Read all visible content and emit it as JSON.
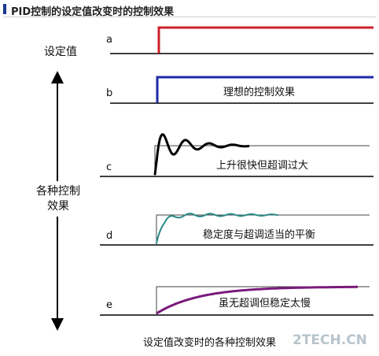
{
  "header": {
    "title_prefix": "PID",
    "title_rest": "控制的设定值改变时的控制效果"
  },
  "left": {
    "setpoint_label": "设定值",
    "effects_label_line1": "各种控制",
    "effects_label_line2": "效果"
  },
  "rows": [
    {
      "letter": "a",
      "caption": ""
    },
    {
      "letter": "b",
      "caption": "理想的控制效果"
    },
    {
      "letter": "c",
      "caption": "上升很快但超调过大"
    },
    {
      "letter": "d",
      "caption": "稳定度与超调适当的平衡"
    },
    {
      "letter": "e",
      "caption": "虽无超调但稳定太慢"
    }
  ],
  "footer": {
    "caption": "设定值改变时的各种控制效果"
  },
  "watermark": {
    "text": "2TECH.CN"
  },
  "colors": {
    "setpoint_step": "#cc1f2a",
    "ideal_step": "#1f2aa8",
    "overshoot_curve": "#000000",
    "balanced_curve": "#2a8a86",
    "slow_curve": "#7a1a7a",
    "axis": "#000000",
    "reference": "#444444"
  }
}
